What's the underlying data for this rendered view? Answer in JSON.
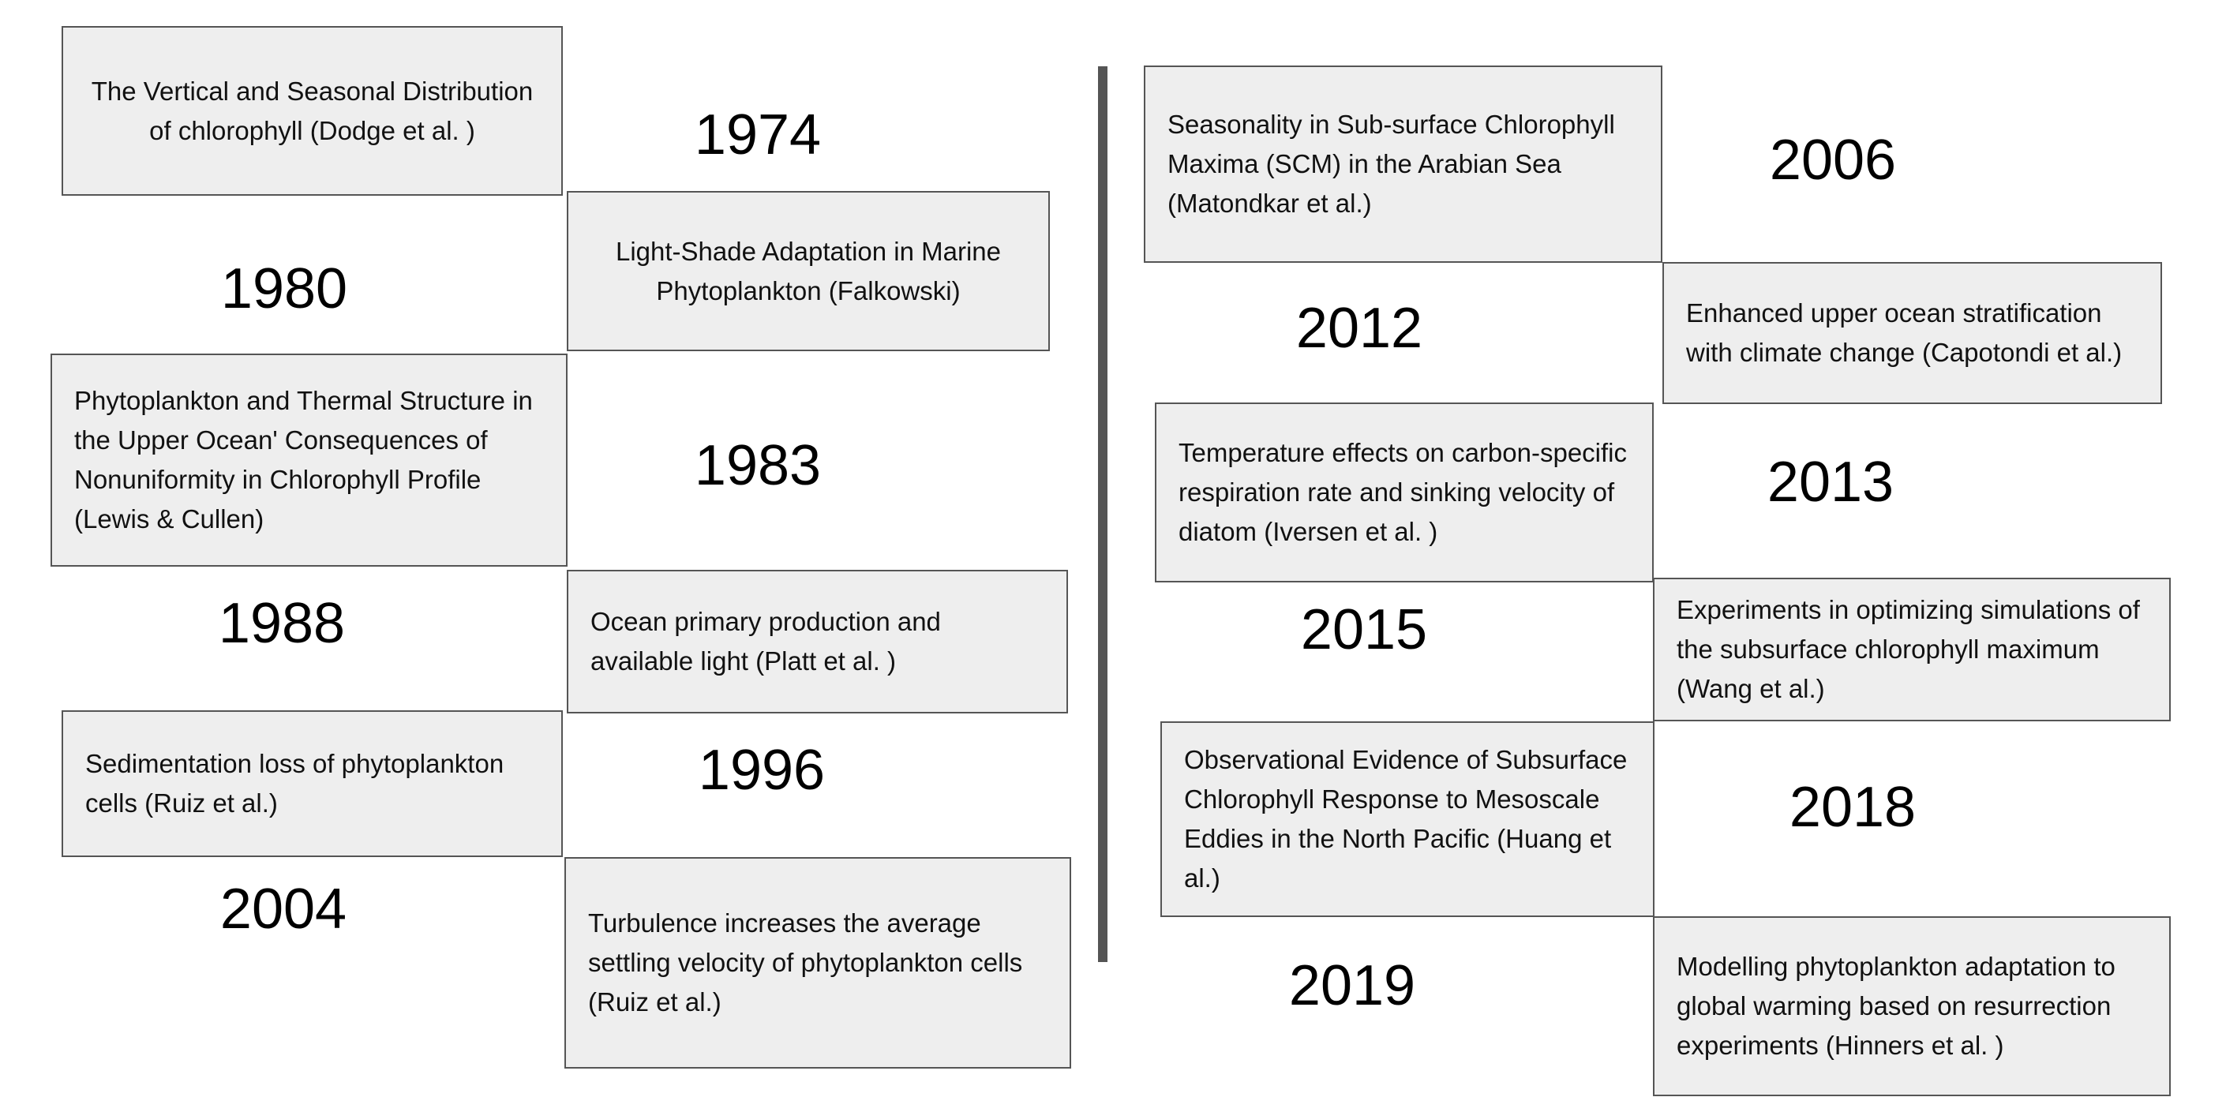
{
  "colors": {
    "box_fill": "#eeeeee",
    "box_border": "#555555",
    "divider": "#555555",
    "text": "#111111"
  },
  "left_column": {
    "papers": [
      {
        "text": "The Vertical and Seasonal Distribution of chlorophyll (Dodge et al. )"
      },
      {
        "text": "Light-Shade Adaptation in Marine Phytoplankton (Falkowski)"
      },
      {
        "text": "Phytoplankton and Thermal Structure in the Upper Ocean' Consequences of Nonuniformity in Chlorophyll Profile (Lewis & Cullen)"
      },
      {
        "text": "Ocean primary production and available light (Platt et al. )"
      },
      {
        "text": "Sedimentation loss of phytoplankton cells (Ruiz et al.)"
      },
      {
        "text": "Turbulence increases the average settling velocity of phytoplankton cells (Ruiz et al.)"
      }
    ],
    "years": [
      "1974",
      "1980",
      "1983",
      "1988",
      "1996",
      "2004"
    ]
  },
  "right_column": {
    "papers": [
      {
        "text": "Seasonality in Sub-surface Chlorophyll Maxima (SCM) in the Arabian Sea (Matondkar et al.)"
      },
      {
        "text": "Enhanced upper ocean stratification with climate change (Capotondi et al.)"
      },
      {
        "text": "Temperature effects on carbon-specific respiration rate and sinking velocity of diatom (Iversen et al. )"
      },
      {
        "text": "Experiments in optimizing simulations of the subsurface chlorophyll maximum (Wang et al.)"
      },
      {
        "text": "Observational Evidence of Subsurface Chlorophyll Response to Mesoscale Eddies in the North Pacific (Huang et al.)"
      },
      {
        "text": "Modelling phytoplankton adaptation to global warming based on resurrection experiments (Hinners et al. )"
      }
    ],
    "years": [
      "2006",
      "2012",
      "2013",
      "2015",
      "2018",
      "2019"
    ]
  }
}
